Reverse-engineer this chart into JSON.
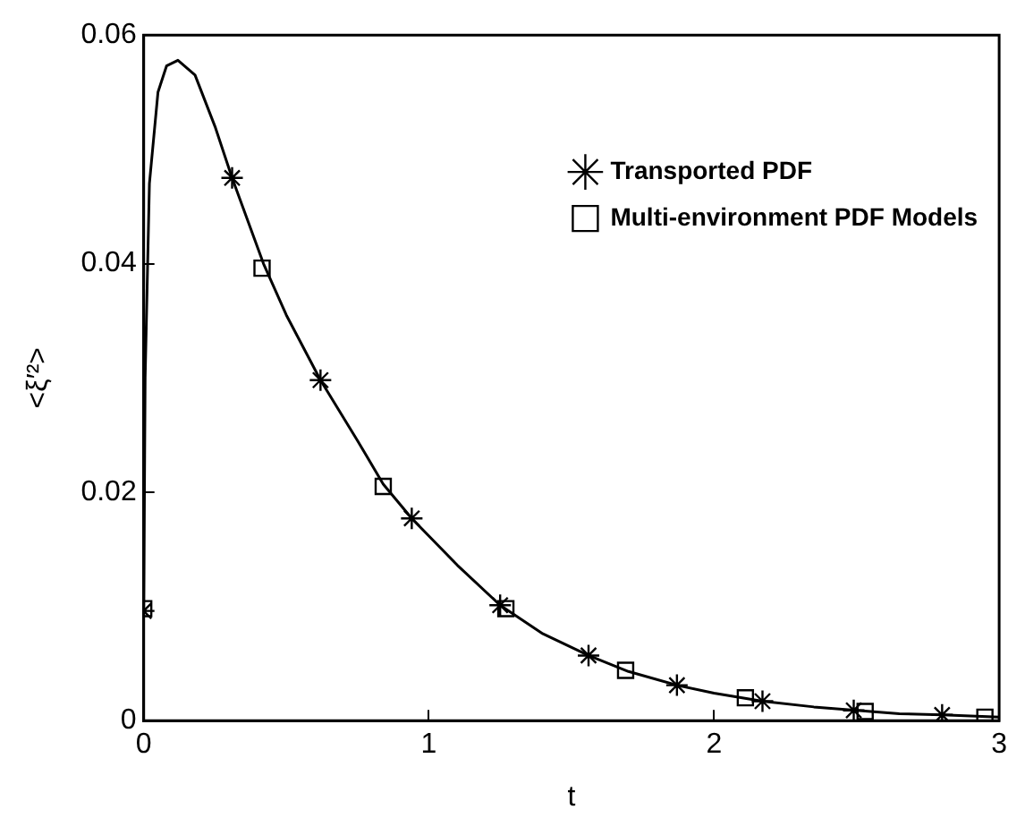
{
  "chart_data": {
    "type": "line",
    "xlabel": "t",
    "ylabel": "<ξ′²>",
    "xlim": [
      0,
      3
    ],
    "xticks": [
      0,
      1,
      2,
      3
    ],
    "ylim": [
      0,
      0.06
    ],
    "yticks": [
      0,
      0.02,
      0.04,
      0.06
    ],
    "grid": false,
    "legend": "top right",
    "series": [
      {
        "marker": "none",
        "color": "#000000",
        "x": [
          0,
          0.005,
          0.02,
          0.05,
          0.08,
          0.12,
          0.18,
          0.25,
          0.31,
          0.42,
          0.5,
          0.62,
          0.75,
          0.84,
          0.94,
          1.1,
          1.25,
          1.4,
          1.56,
          1.7,
          1.87,
          2.0,
          2.17,
          2.35,
          2.5,
          2.65,
          2.8,
          3.0
        ],
        "values": [
          0.0095,
          0.03,
          0.047,
          0.055,
          0.0573,
          0.0578,
          0.0565,
          0.052,
          0.0475,
          0.04,
          0.0355,
          0.0298,
          0.0245,
          0.0207,
          0.0177,
          0.0136,
          0.0101,
          0.0076,
          0.0057,
          0.0043,
          0.0031,
          0.0024,
          0.0017,
          0.0012,
          0.0009,
          0.0006,
          0.0005,
          0.0003
        ]
      },
      {
        "name": "Transported PDF",
        "type": "scatter",
        "marker": "cross",
        "color": "#000000",
        "x": [
          0,
          0.31,
          0.62,
          0.94,
          1.25,
          1.56,
          1.87,
          2.17,
          2.49,
          2.8
        ],
        "values": [
          0.0096,
          0.0475,
          0.0298,
          0.0177,
          0.0101,
          0.0057,
          0.0031,
          0.0017,
          0.0009,
          0.0005
        ]
      },
      {
        "name": "Multi-environment PDF Models",
        "type": "scatter",
        "marker": "square",
        "color": "#000000",
        "x": [
          0,
          0.415,
          0.84,
          1.27,
          1.69,
          2.11,
          2.53,
          2.95
        ],
        "values": [
          0.0098,
          0.0396,
          0.0205,
          0.0098,
          0.0044,
          0.002,
          0.0008,
          0.0003
        ]
      }
    ]
  }
}
